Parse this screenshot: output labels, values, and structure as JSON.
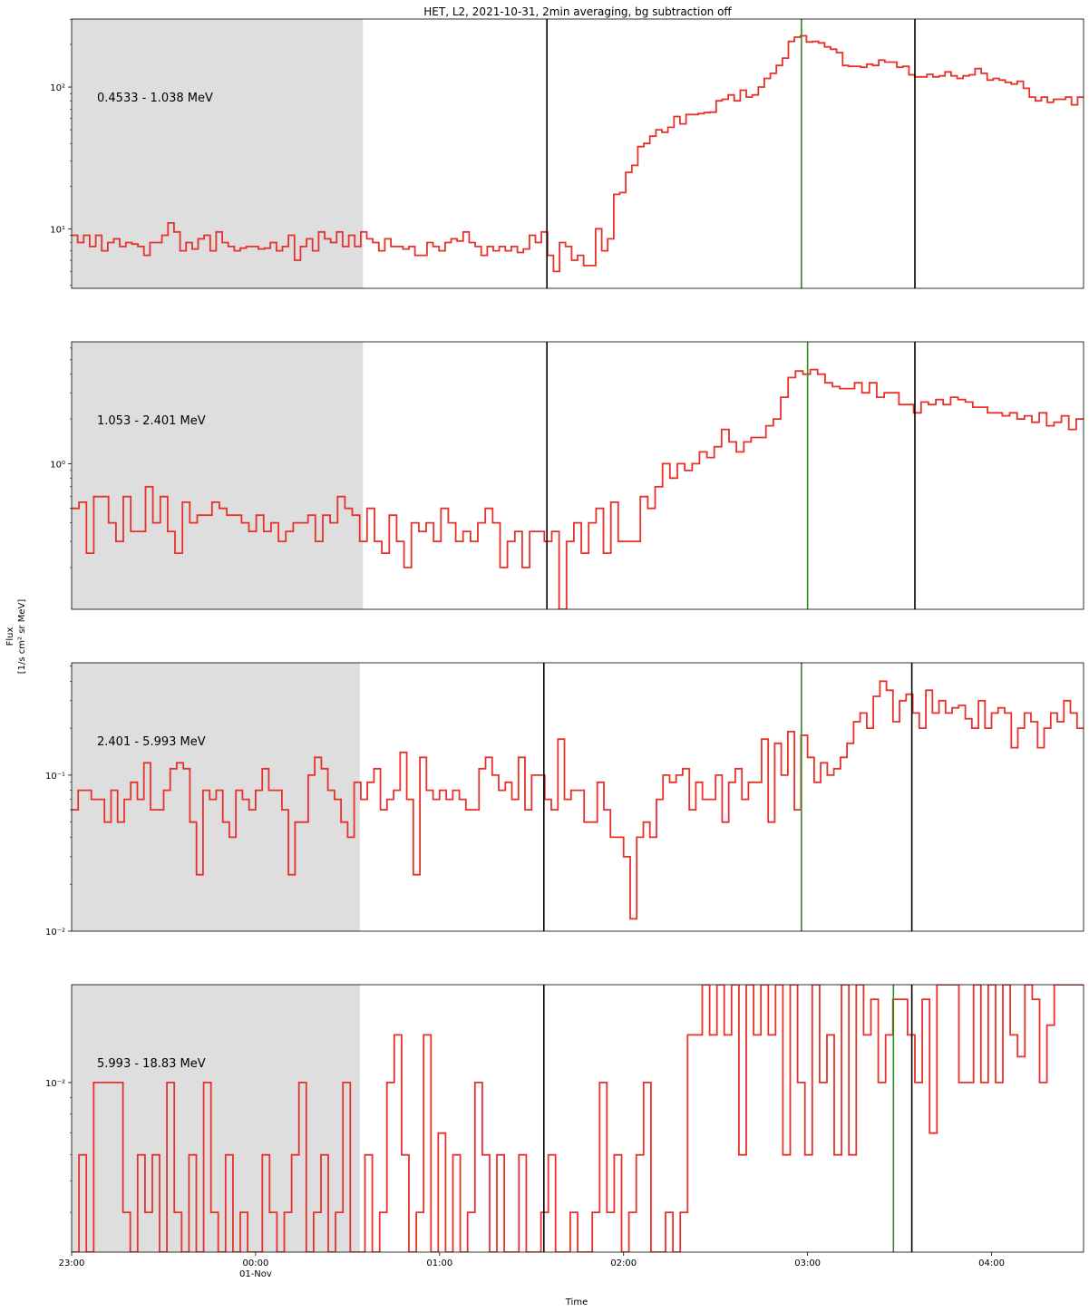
{
  "chart_data": {
    "type": "line",
    "title": "HET, L2, 2021-10-31, 2min averaging, bg subtraction off",
    "xlabel": "Time",
    "ylabel_line1": "Flux",
    "ylabel_line2": "[1/s cm² sr MeV]",
    "x_ticks": [
      {
        "t": 0,
        "label": "23:00",
        "sub": ""
      },
      {
        "t": 60,
        "label": "00:00",
        "sub": "01-Nov"
      },
      {
        "t": 120,
        "label": "01:00",
        "sub": ""
      },
      {
        "t": 180,
        "label": "02:00",
        "sub": ""
      },
      {
        "t": 240,
        "label": "03:00",
        "sub": ""
      },
      {
        "t": 300,
        "label": "04:00",
        "sub": ""
      }
    ],
    "x_range_minutes": [
      0,
      330
    ],
    "x_unit_note": "minutes after 2021-10-31 23:00",
    "line_color": "#e8312a",
    "shade_color": "#dedede",
    "event_line_color": "#000000",
    "peak_line_color": "#2e8b1e",
    "panels": [
      {
        "label": "0.4533 - 1.038 MeV",
        "ylog": [
          0.58,
          2.48
        ],
        "yticks": [
          {
            "v": 1,
            "label": "10¹"
          },
          {
            "v": 2,
            "label": "10²"
          }
        ],
        "shade_end": 95,
        "event_lines": [
          155,
          275
        ],
        "peak_line": 238,
        "values": [
          9.0,
          8.0,
          9.0,
          7.5,
          9.0,
          7.0,
          8.0,
          8.5,
          7.5,
          8.0,
          7.8,
          7.5,
          6.5,
          8.0,
          8.0,
          9.0,
          11.0,
          9.5,
          7.0,
          8.0,
          7.2,
          8.5,
          9.0,
          7.0,
          9.5,
          8.0,
          7.5,
          7.0,
          7.3,
          7.5,
          7.5,
          7.2,
          7.3,
          8.0,
          7.0,
          7.5,
          9.0,
          6.0,
          7.5,
          8.5,
          7.0,
          9.5,
          8.5,
          8.0,
          9.5,
          7.5,
          9.0,
          7.5,
          9.5,
          8.5,
          8.0,
          7.0,
          8.5,
          7.5,
          7.5,
          7.2,
          7.5,
          6.5,
          6.5,
          8.0,
          7.5,
          7.0,
          8.0,
          8.5,
          8.2,
          9.5,
          8.0,
          7.5,
          6.5,
          7.5,
          7.0,
          7.5,
          7.0,
          7.5,
          6.8,
          7.2,
          9.0,
          8.0,
          9.5,
          6.5,
          5.0,
          8.0,
          7.5,
          6.0,
          6.5,
          5.5,
          5.5,
          10.0,
          7.0,
          8.5,
          17.5,
          18.0,
          25.0,
          28.0,
          38.0,
          40.0,
          45.0,
          50.0,
          48.0,
          52.0,
          62.0,
          55.0,
          64.0,
          64.0,
          65.0,
          66.0,
          66.5,
          80.0,
          82.0,
          88.0,
          80.0,
          95.0,
          85.0,
          88.0,
          100.0,
          115.0,
          125.0,
          142.0,
          160.0,
          210.0,
          225.0,
          230.0,
          208.0,
          210.0,
          205.0,
          192.0,
          185.0,
          175.0,
          142.0,
          140.0,
          140.0,
          138.0,
          145.0,
          142.0,
          155.0,
          150.0,
          150.0,
          138.0,
          140.0,
          122.0,
          118.0,
          118.0,
          123.0,
          118.0,
          120.0,
          128.0,
          120.0,
          115.0,
          120.0,
          122.0,
          135.0,
          125.0,
          112.0,
          115.0,
          112.0,
          108.0,
          105.0,
          110.0,
          98.0,
          85.0,
          80.0,
          85.0,
          78.0,
          82.0,
          82.0,
          85.0,
          75.0,
          85.0
        ]
      },
      {
        "label": "1.053 - 2.401 MeV",
        "ylog": [
          -0.98,
          0.82
        ],
        "yticks": [
          {
            "v": 0,
            "label": "10⁰"
          }
        ],
        "shade_end": 95,
        "event_lines": [
          155,
          275
        ],
        "peak_line": 240,
        "values": [
          0.5,
          0.55,
          0.25,
          0.6,
          0.6,
          0.4,
          0.3,
          0.6,
          0.35,
          0.35,
          0.7,
          0.4,
          0.6,
          0.35,
          0.25,
          0.55,
          0.4,
          0.45,
          0.45,
          0.55,
          0.5,
          0.45,
          0.45,
          0.4,
          0.35,
          0.45,
          0.35,
          0.4,
          0.3,
          0.35,
          0.4,
          0.4,
          0.45,
          0.3,
          0.45,
          0.4,
          0.6,
          0.5,
          0.45,
          0.3,
          0.5,
          0.3,
          0.25,
          0.45,
          0.3,
          0.2,
          0.4,
          0.35,
          0.4,
          0.3,
          0.5,
          0.4,
          0.3,
          0.35,
          0.3,
          0.4,
          0.5,
          0.4,
          0.2,
          0.3,
          0.35,
          0.2,
          0.35,
          0.35,
          0.3,
          0.35,
          0.1,
          0.3,
          0.4,
          0.25,
          0.4,
          0.5,
          0.25,
          0.55,
          0.3,
          0.3,
          0.3,
          0.6,
          0.5,
          0.7,
          1.0,
          0.8,
          1.0,
          0.9,
          1.0,
          1.2,
          1.1,
          1.3,
          1.7,
          1.4,
          1.2,
          1.4,
          1.5,
          1.5,
          1.8,
          2.0,
          2.8,
          3.8,
          4.2,
          4.0,
          4.3,
          4.0,
          3.5,
          3.3,
          3.2,
          3.2,
          3.5,
          3.0,
          3.5,
          2.8,
          3.0,
          3.0,
          2.5,
          2.5,
          2.2,
          2.6,
          2.5,
          2.7,
          2.5,
          2.8,
          2.7,
          2.6,
          2.4,
          2.4,
          2.2,
          2.2,
          2.1,
          2.2,
          2.0,
          2.1,
          1.9,
          2.2,
          1.8,
          1.9,
          2.1,
          1.7,
          2.0
        ]
      },
      {
        "label": "2.401 - 5.993 MeV",
        "ylog": [
          -2.0,
          -0.28
        ],
        "yticks": [
          {
            "v": -2,
            "label": "10⁻²"
          },
          {
            "v": -1,
            "label": "10⁻¹"
          }
        ],
        "shade_end": 94,
        "event_lines": [
          154,
          274
        ],
        "peak_line": 238,
        "values": [
          0.06,
          0.08,
          0.08,
          0.07,
          0.07,
          0.05,
          0.08,
          0.05,
          0.07,
          0.09,
          0.07,
          0.12,
          0.06,
          0.06,
          0.08,
          0.11,
          0.12,
          0.11,
          0.05,
          0.023,
          0.08,
          0.07,
          0.08,
          0.05,
          0.04,
          0.08,
          0.07,
          0.06,
          0.08,
          0.11,
          0.08,
          0.08,
          0.06,
          0.023,
          0.05,
          0.05,
          0.1,
          0.13,
          0.11,
          0.08,
          0.07,
          0.05,
          0.04,
          0.09,
          0.07,
          0.09,
          0.11,
          0.06,
          0.07,
          0.08,
          0.14,
          0.07,
          0.023,
          0.13,
          0.08,
          0.07,
          0.08,
          0.07,
          0.08,
          0.07,
          0.06,
          0.06,
          0.11,
          0.13,
          0.1,
          0.08,
          0.09,
          0.07,
          0.13,
          0.06,
          0.1,
          0.1,
          0.07,
          0.06,
          0.17,
          0.07,
          0.08,
          0.08,
          0.05,
          0.05,
          0.09,
          0.06,
          0.04,
          0.04,
          0.03,
          0.012,
          0.04,
          0.05,
          0.04,
          0.07,
          0.1,
          0.09,
          0.1,
          0.11,
          0.06,
          0.09,
          0.07,
          0.07,
          0.1,
          0.05,
          0.09,
          0.11,
          0.07,
          0.09,
          0.09,
          0.17,
          0.05,
          0.16,
          0.1,
          0.19,
          0.06,
          0.18,
          0.13,
          0.09,
          0.12,
          0.1,
          0.11,
          0.13,
          0.16,
          0.22,
          0.25,
          0.2,
          0.32,
          0.4,
          0.35,
          0.22,
          0.3,
          0.33,
          0.25,
          0.2,
          0.35,
          0.25,
          0.3,
          0.25,
          0.27,
          0.28,
          0.23,
          0.2,
          0.3,
          0.2,
          0.25,
          0.27,
          0.25,
          0.15,
          0.2,
          0.25,
          0.22,
          0.15,
          0.2,
          0.25,
          0.22,
          0.3,
          0.25,
          0.2
        ]
      },
      {
        "label": "5.993 - 18.83 MeV",
        "ylog": [
          -2.52,
          -1.7
        ],
        "yticks": [
          {
            "v": -2,
            "label": "10⁻²"
          }
        ],
        "shade_end": 94,
        "event_lines": [
          154,
          274
        ],
        "peak_line": 268,
        "values": [
          0.003,
          0.006,
          0.003,
          0.01,
          0.01,
          0.01,
          0.01,
          0.004,
          0.003,
          0.006,
          0.004,
          0.006,
          0.003,
          0.01,
          0.004,
          0.003,
          0.006,
          0.003,
          0.01,
          0.004,
          0.003,
          0.006,
          0.003,
          0.004,
          0.003,
          0.003,
          0.006,
          0.004,
          0.003,
          0.004,
          0.006,
          0.01,
          0.003,
          0.004,
          0.006,
          0.003,
          0.004,
          0.01,
          0.003,
          0.003,
          0.006,
          0.003,
          0.004,
          0.01,
          0.014,
          0.006,
          0.003,
          0.004,
          0.014,
          0.003,
          0.007,
          0.003,
          0.006,
          0.003,
          0.004,
          0.01,
          0.006,
          0.003,
          0.006,
          0.003,
          0.003,
          0.006,
          0.003,
          0.003,
          0.004,
          0.006,
          0.003,
          0.003,
          0.004,
          0.003,
          0.003,
          0.004,
          0.01,
          0.004,
          0.006,
          0.003,
          0.004,
          0.006,
          0.01,
          0.003,
          0.003,
          0.004,
          0.003,
          0.004,
          0.014,
          0.014,
          0.02,
          0.014,
          0.025,
          0.014,
          0.025,
          0.006,
          0.02,
          0.014,
          0.025,
          0.014,
          0.02,
          0.006,
          0.025,
          0.01,
          0.006,
          0.025,
          0.01,
          0.014,
          0.006,
          0.028,
          0.006,
          0.03,
          0.014,
          0.018,
          0.01,
          0.014,
          0.018,
          0.018,
          0.014,
          0.01,
          0.018,
          0.007,
          0.025,
          0.03,
          0.02,
          0.01,
          0.01,
          0.025,
          0.01,
          0.02,
          0.01,
          0.02,
          0.014,
          0.012,
          0.02,
          0.018,
          0.01,
          0.015,
          0.02,
          0.025,
          0.025,
          0.02
        ]
      }
    ]
  }
}
